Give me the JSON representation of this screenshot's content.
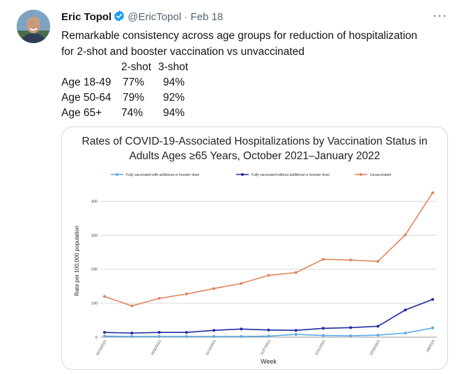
{
  "tweet": {
    "author_name": "Eric Topol",
    "handle": "@EricTopol",
    "separator": "·",
    "date": "Feb 18",
    "more_label": "···",
    "text_line1": "Remarkable consistency across age groups for reduction of hospitalization",
    "text_line2": "for 2-shot and booster vaccination vs unvaccinated",
    "stats": {
      "headers": [
        "2-shot",
        "3-shot"
      ],
      "rows": [
        {
          "age": "Age 18-49",
          "two_shot": "77%",
          "three_shot": "94%"
        },
        {
          "age": "Age 50-64",
          "two_shot": "79%",
          "three_shot": "92%"
        },
        {
          "age": "Age 65+",
          "two_shot": "74%",
          "three_shot": "94%"
        }
      ]
    }
  },
  "colors": {
    "verified_blue": "#1d9bf0",
    "booster": "#5aa9e6",
    "two_dose": "#1f2a9e",
    "unvaccinated": "#e0845c"
  },
  "chart_data": {
    "type": "line",
    "title_line1": "Rates of COVID-19-Associated Hospitalizations by Vaccination Status in",
    "title_line2": "Adults Ages ≥65 Years, October 2021–January 2022",
    "xlabel": "Week",
    "ylabel": "Rate per 100,000 population",
    "ylim": [
      0,
      450
    ],
    "yticks": [
      0,
      100,
      200,
      300,
      400
    ],
    "grid": true,
    "legend_position": "top",
    "x": [
      "10/16/2021",
      "10/23/2021",
      "10/30/2021",
      "11/6/2021",
      "11/13/2021",
      "11/20/2021",
      "11/27/2021",
      "12/4/2021",
      "12/11/2021",
      "12/18/2021",
      "12/25/2021",
      "1/1/2022",
      "1/8/2022"
    ],
    "x_tick_labels": [
      "10/16/2021",
      "10/30/2021",
      "11/13/2021",
      "11/27/2021",
      "12/11/2021",
      "12/25/2021",
      "1/8/2022"
    ],
    "series": [
      {
        "name": "Fully vaccinated with additional or booster dose",
        "color": "#5aa9e6",
        "values": [
          3,
          2,
          2,
          2,
          2,
          2,
          3,
          8,
          5,
          4,
          6,
          12,
          27
        ]
      },
      {
        "name": "Fully vaccinated without additional or booster dose",
        "color": "#1f2a9e",
        "values": [
          14,
          12,
          14,
          14,
          20,
          24,
          21,
          20,
          26,
          28,
          32,
          80,
          111
        ]
      },
      {
        "name": "Unvaccinated",
        "color": "#e0845c",
        "values": [
          120,
          92,
          114,
          127,
          143,
          158,
          182,
          190,
          229,
          227,
          223,
          301,
          425
        ]
      }
    ]
  }
}
